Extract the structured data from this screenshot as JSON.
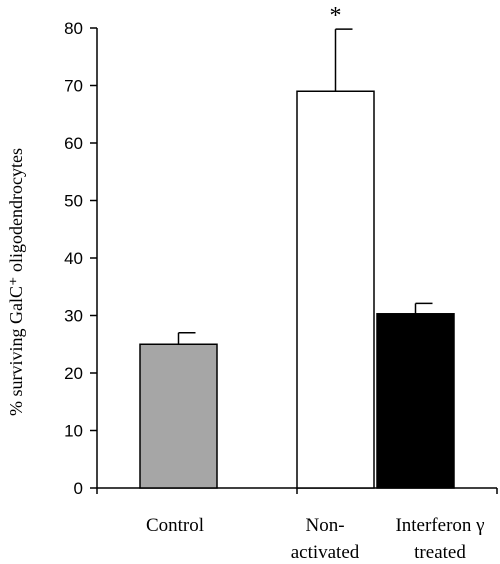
{
  "chart_data": {
    "type": "bar",
    "categories": [
      [
        "Control"
      ],
      [
        "Non-",
        "activated"
      ],
      [
        "Interferon γ",
        "treated"
      ]
    ],
    "values": [
      25,
      69,
      30.3
    ],
    "errors": [
      2,
      10.8,
      1.8
    ],
    "colors": [
      "#a6a6a6",
      "#ffffff",
      "#000000"
    ],
    "ylabel": "% surviving GalC⁺ oligodendrocytes",
    "ylim": [
      0,
      80
    ],
    "yticks": [
      0,
      10,
      20,
      30,
      40,
      50,
      60,
      70,
      80
    ],
    "annotations": [
      {
        "category": 1,
        "text": "*"
      }
    ],
    "grid": false
  }
}
